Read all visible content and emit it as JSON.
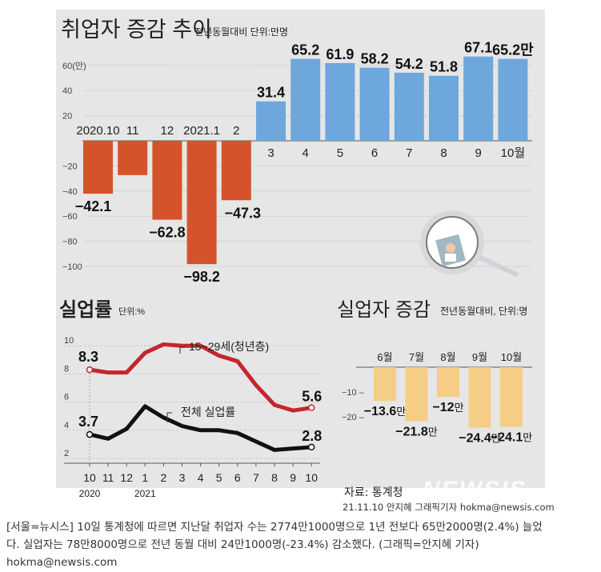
{
  "chart_data": [
    {
      "type": "bar",
      "title": "취업자 증감 추이",
      "subtitle": "전년동월대비 단위:만명",
      "xlabel": "",
      "ylabel": "",
      "ylim": [
        -110,
        70
      ],
      "yticks": [
        60,
        40,
        20,
        -20,
        -40,
        -60,
        -80,
        -100
      ],
      "ytick_labels": [
        "60(만)",
        "40",
        "20",
        "-20",
        "-40",
        "-60",
        "-80",
        "-100"
      ],
      "grid": true,
      "categories": [
        "2020.10",
        "11",
        "12",
        "2021.1",
        "2",
        "3",
        "4",
        "5",
        "6",
        "7",
        "8",
        "9",
        "10월"
      ],
      "values": [
        -42.1,
        -27.3,
        -62.8,
        -98.2,
        -47.3,
        31.4,
        65.2,
        61.9,
        58.2,
        54.2,
        51.8,
        67.1,
        65.2
      ],
      "data_labels": [
        "-42.1",
        "",
        "-62.8",
        "-98.2",
        "-47.3",
        "31.4",
        "65.2",
        "61.9",
        "58.2",
        "54.2",
        "51.8",
        "67.1",
        "65.2만"
      ],
      "colors": {
        "negative": "#d4532a",
        "positive": "#6ea7dc"
      }
    },
    {
      "type": "line",
      "title": "실업률",
      "subtitle": "단위:%",
      "ylim": [
        2,
        10.5
      ],
      "yticks": [
        10,
        8,
        6,
        4,
        2
      ],
      "grid": true,
      "x": [
        "10",
        "11",
        "12",
        "1",
        "2",
        "3",
        "4",
        "5",
        "6",
        "7",
        "8",
        "9",
        "10"
      ],
      "x_year_labels": [
        {
          "index": 0,
          "label": "2020"
        },
        {
          "index": 3,
          "label": "2021"
        }
      ],
      "series": [
        {
          "name": "15~29세(청년층)",
          "color": "#c4262e",
          "values": [
            8.3,
            8.1,
            8.1,
            9.5,
            10.1,
            10.0,
            10.0,
            9.3,
            8.9,
            7.2,
            5.8,
            5.4,
            5.6
          ],
          "start_label": "8.3",
          "end_label": "5.6"
        },
        {
          "name": "전체 실업률",
          "color": "#111111",
          "values": [
            3.7,
            3.4,
            4.1,
            5.7,
            4.9,
            4.3,
            4.0,
            4.0,
            3.8,
            3.2,
            2.6,
            2.7,
            2.8
          ],
          "start_label": "3.7",
          "end_label": "2.8"
        }
      ]
    },
    {
      "type": "bar",
      "title": "실업자 증감",
      "subtitle": "전년동월대비, 단위:명",
      "ylim": [
        -26,
        0
      ],
      "yticks": [
        -10,
        -20
      ],
      "ytick_labels": [
        "-10",
        "-20"
      ],
      "grid": false,
      "categories": [
        "6월",
        "7월",
        "8월",
        "9월",
        "10월"
      ],
      "values": [
        -13.6,
        -21.8,
        -12,
        -24.4,
        -24.1
      ],
      "data_labels": [
        "-13.6",
        "-21.8",
        "-12",
        "-24.4",
        "-24.1"
      ],
      "label_unit": "만",
      "colors": {
        "bar": "#f5cd86"
      }
    }
  ],
  "source": "자료: 통계청",
  "watermark": "NEWSIS",
  "credit": "21.11.10 안지혜 그래픽기자 hokma@newsis.com",
  "caption": {
    "line1": "[서울=뉴시스] 10일 통계청에 따르면 지난달 취업자 수는 2774만1000명으로 1년 전보다 65만2000명(2.4%) 늘었",
    "line2": "다.  실업자는 78만8000명으로 전년 동월 대비 24만1000명(-23.4%) 감소했다. (그래픽=안지혜 기자)",
    "line3": "hokma@newsis.com"
  },
  "illustration": "magnifier-icon"
}
